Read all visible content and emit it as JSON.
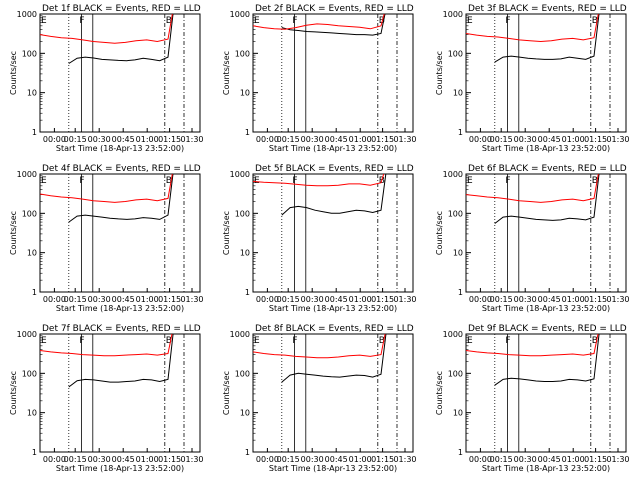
{
  "colors": {
    "events": "#000000",
    "lld": "#ff0000",
    "background": "#ffffff"
  },
  "chart_data": [
    {
      "type": "line",
      "title": "Det 1f BLACK = Events, RED = LLD",
      "xlabel": "Start Time (18-Apr-13 23:52:00)",
      "ylabel": "Counts/sec",
      "yscale": "log",
      "ylim": [
        1,
        1000
      ],
      "ytick_labels": [
        "1",
        "10",
        "100",
        "1000"
      ],
      "xtick_labels": [
        "00:00",
        "00:15",
        "00:30",
        "00:45",
        "01:00",
        "01:15",
        "01:30"
      ],
      "grid": false,
      "markers": [
        {
          "label": "E"
        },
        {
          "label": "F"
        },
        {
          "label": "B"
        }
      ],
      "series": [
        {
          "name": "Events",
          "values": [
            55,
            75,
            80,
            76,
            70,
            68,
            66,
            65,
            68,
            75,
            70,
            65,
            80,
            2000
          ]
        },
        {
          "name": "LLD",
          "values": [
            300,
            270,
            250,
            240,
            220,
            200,
            190,
            180,
            190,
            210,
            220,
            200,
            230,
            2000
          ]
        }
      ]
    },
    {
      "type": "line",
      "title": "Det 2f BLACK = Events, RED = LLD",
      "xlabel": "Start Time (18-Apr-13 23:52:00)",
      "ylabel": "Counts/sec",
      "yscale": "log",
      "ylim": [
        1,
        1000
      ],
      "ytick_labels": [
        "1",
        "10",
        "100",
        "1000"
      ],
      "xtick_labels": [
        "00:00",
        "00:15",
        "00:30",
        "00:45",
        "01:00",
        "01:15",
        "01:30"
      ],
      "grid": false,
      "markers": [
        {
          "label": "E"
        },
        {
          "label": "F"
        },
        {
          "label": "B"
        }
      ],
      "series": [
        {
          "name": "Events",
          "values": [
            450,
            400,
            380,
            360,
            350,
            340,
            330,
            320,
            310,
            300,
            300,
            290,
            320,
            2000
          ]
        },
        {
          "name": "LLD",
          "values": [
            500,
            450,
            420,
            410,
            450,
            520,
            560,
            540,
            500,
            480,
            460,
            420,
            500,
            2000
          ]
        }
      ]
    },
    {
      "type": "line",
      "title": "Det 3f BLACK = Events, RED = LLD",
      "xlabel": "Start Time (18-Apr-13 23:52:00)",
      "ylabel": "Counts/sec",
      "yscale": "log",
      "ylim": [
        1,
        1000
      ],
      "ytick_labels": [
        "1",
        "10",
        "100",
        "1000"
      ],
      "xtick_labels": [
        "00:00",
        "00:15",
        "00:30",
        "00:45",
        "01:00",
        "01:15",
        "01:30"
      ],
      "grid": false,
      "markers": [
        {
          "label": "E"
        },
        {
          "label": "F"
        },
        {
          "label": "B"
        }
      ],
      "series": [
        {
          "name": "Events",
          "values": [
            60,
            80,
            85,
            80,
            75,
            72,
            70,
            70,
            72,
            80,
            75,
            70,
            85,
            2000
          ]
        },
        {
          "name": "LLD",
          "values": [
            320,
            290,
            270,
            260,
            240,
            220,
            210,
            200,
            210,
            230,
            240,
            220,
            250,
            2000
          ]
        }
      ]
    },
    {
      "type": "line",
      "title": "Det 4f BLACK = Events, RED = LLD",
      "xlabel": "Start Time (18-Apr-13 23:52:00)",
      "ylabel": "Counts/sec",
      "yscale": "log",
      "ylim": [
        1,
        1000
      ],
      "ytick_labels": [
        "1",
        "10",
        "100",
        "1000"
      ],
      "xtick_labels": [
        "00:00",
        "00:15",
        "00:30",
        "00:45",
        "01:00",
        "01:15",
        "01:30"
      ],
      "grid": false,
      "markers": [
        {
          "label": "E"
        },
        {
          "label": "F"
        },
        {
          "label": "B"
        }
      ],
      "series": [
        {
          "name": "Events",
          "values": [
            60,
            85,
            90,
            85,
            80,
            75,
            72,
            70,
            72,
            78,
            75,
            70,
            90,
            2000
          ]
        },
        {
          "name": "LLD",
          "values": [
            310,
            280,
            260,
            250,
            230,
            210,
            200,
            190,
            200,
            220,
            230,
            210,
            240,
            2000
          ]
        }
      ]
    },
    {
      "type": "line",
      "title": "Det 5f BLACK = Events, RED = LLD",
      "xlabel": "Start Time (18-Apr-13 23:52:00)",
      "ylabel": "Counts/sec",
      "yscale": "log",
      "ylim": [
        1,
        1000
      ],
      "ytick_labels": [
        "1",
        "10",
        "100",
        "1000"
      ],
      "xtick_labels": [
        "00:00",
        "00:15",
        "00:30",
        "00:45",
        "01:00",
        "01:15",
        "01:30"
      ],
      "grid": false,
      "markers": [
        {
          "label": "E"
        },
        {
          "label": "F"
        },
        {
          "label": "B"
        }
      ],
      "series": [
        {
          "name": "Events",
          "values": [
            90,
            140,
            150,
            140,
            120,
            110,
            100,
            100,
            110,
            120,
            115,
            105,
            120,
            2000
          ]
        },
        {
          "name": "LLD",
          "values": [
            650,
            620,
            600,
            580,
            550,
            520,
            500,
            500,
            520,
            560,
            560,
            520,
            600,
            2000
          ]
        }
      ]
    },
    {
      "type": "line",
      "title": "Det 6f BLACK = Events, RED = LLD",
      "xlabel": "Start Time (18-Apr-13 23:52:00)",
      "ylabel": "Counts/sec",
      "yscale": "log",
      "ylim": [
        1,
        1000
      ],
      "ytick_labels": [
        "1",
        "10",
        "100",
        "1000"
      ],
      "xtick_labels": [
        "00:00",
        "00:15",
        "00:30",
        "00:45",
        "01:00",
        "01:15",
        "01:30"
      ],
      "grid": false,
      "markers": [
        {
          "label": "E"
        },
        {
          "label": "F"
        },
        {
          "label": "B"
        }
      ],
      "series": [
        {
          "name": "Events",
          "values": [
            55,
            80,
            85,
            80,
            75,
            70,
            68,
            66,
            68,
            75,
            72,
            68,
            80,
            2000
          ]
        },
        {
          "name": "LLD",
          "values": [
            300,
            280,
            260,
            250,
            230,
            210,
            200,
            190,
            200,
            220,
            230,
            210,
            240,
            2000
          ]
        }
      ]
    },
    {
      "type": "line",
      "title": "Det 7f BLACK = Events, RED = LLD",
      "xlabel": "Start Time (18-Apr-13 23:52:00)",
      "ylabel": "Counts/sec",
      "yscale": "log",
      "ylim": [
        1,
        1000
      ],
      "ytick_labels": [
        "1",
        "10",
        "100",
        "1000"
      ],
      "xtick_labels": [
        "00:00",
        "00:15",
        "00:30",
        "00:45",
        "01:00",
        "01:15",
        "01:30"
      ],
      "grid": false,
      "markers": [
        {
          "label": "E"
        },
        {
          "label": "F"
        },
        {
          "label": "B"
        }
      ],
      "series": [
        {
          "name": "Events",
          "values": [
            45,
            65,
            70,
            68,
            64,
            60,
            60,
            62,
            64,
            70,
            68,
            62,
            70,
            2000
          ]
        },
        {
          "name": "LLD",
          "values": [
            380,
            350,
            330,
            320,
            300,
            290,
            280,
            280,
            290,
            300,
            310,
            290,
            320,
            2000
          ]
        }
      ]
    },
    {
      "type": "line",
      "title": "Det 8f BLACK = Events, RED = LLD",
      "xlabel": "Start Time (18-Apr-13 23:52:00)",
      "ylabel": "Counts/sec",
      "yscale": "log",
      "ylim": [
        1,
        1000
      ],
      "ytick_labels": [
        "1",
        "10",
        "100",
        "1000"
      ],
      "xtick_labels": [
        "00:00",
        "00:15",
        "00:30",
        "00:45",
        "01:00",
        "01:15",
        "01:30"
      ],
      "grid": false,
      "markers": [
        {
          "label": "E"
        },
        {
          "label": "F"
        },
        {
          "label": "B"
        }
      ],
      "series": [
        {
          "name": "Events",
          "values": [
            60,
            90,
            100,
            95,
            90,
            85,
            82,
            80,
            85,
            90,
            88,
            80,
            95,
            2000
          ]
        },
        {
          "name": "LLD",
          "values": [
            350,
            320,
            300,
            290,
            270,
            260,
            250,
            250,
            260,
            280,
            290,
            270,
            300,
            2000
          ]
        }
      ]
    },
    {
      "type": "line",
      "title": "Det 9f BLACK = Events, RED = LLD",
      "xlabel": "Start Time (18-Apr-13 23:52:00)",
      "ylabel": "Counts/sec",
      "yscale": "log",
      "ylim": [
        1,
        1000
      ],
      "ytick_labels": [
        "1",
        "10",
        "100",
        "1000"
      ],
      "xtick_labels": [
        "00:00",
        "00:15",
        "00:30",
        "00:45",
        "01:00",
        "01:15",
        "01:30"
      ],
      "grid": false,
      "markers": [
        {
          "label": "E"
        },
        {
          "label": "F"
        },
        {
          "label": "B"
        }
      ],
      "series": [
        {
          "name": "Events",
          "values": [
            50,
            70,
            75,
            72,
            68,
            64,
            62,
            62,
            64,
            70,
            68,
            64,
            72,
            2000
          ]
        },
        {
          "name": "LLD",
          "values": [
            380,
            350,
            330,
            320,
            300,
            290,
            280,
            280,
            290,
            300,
            310,
            290,
            320,
            2000
          ]
        }
      ]
    }
  ]
}
